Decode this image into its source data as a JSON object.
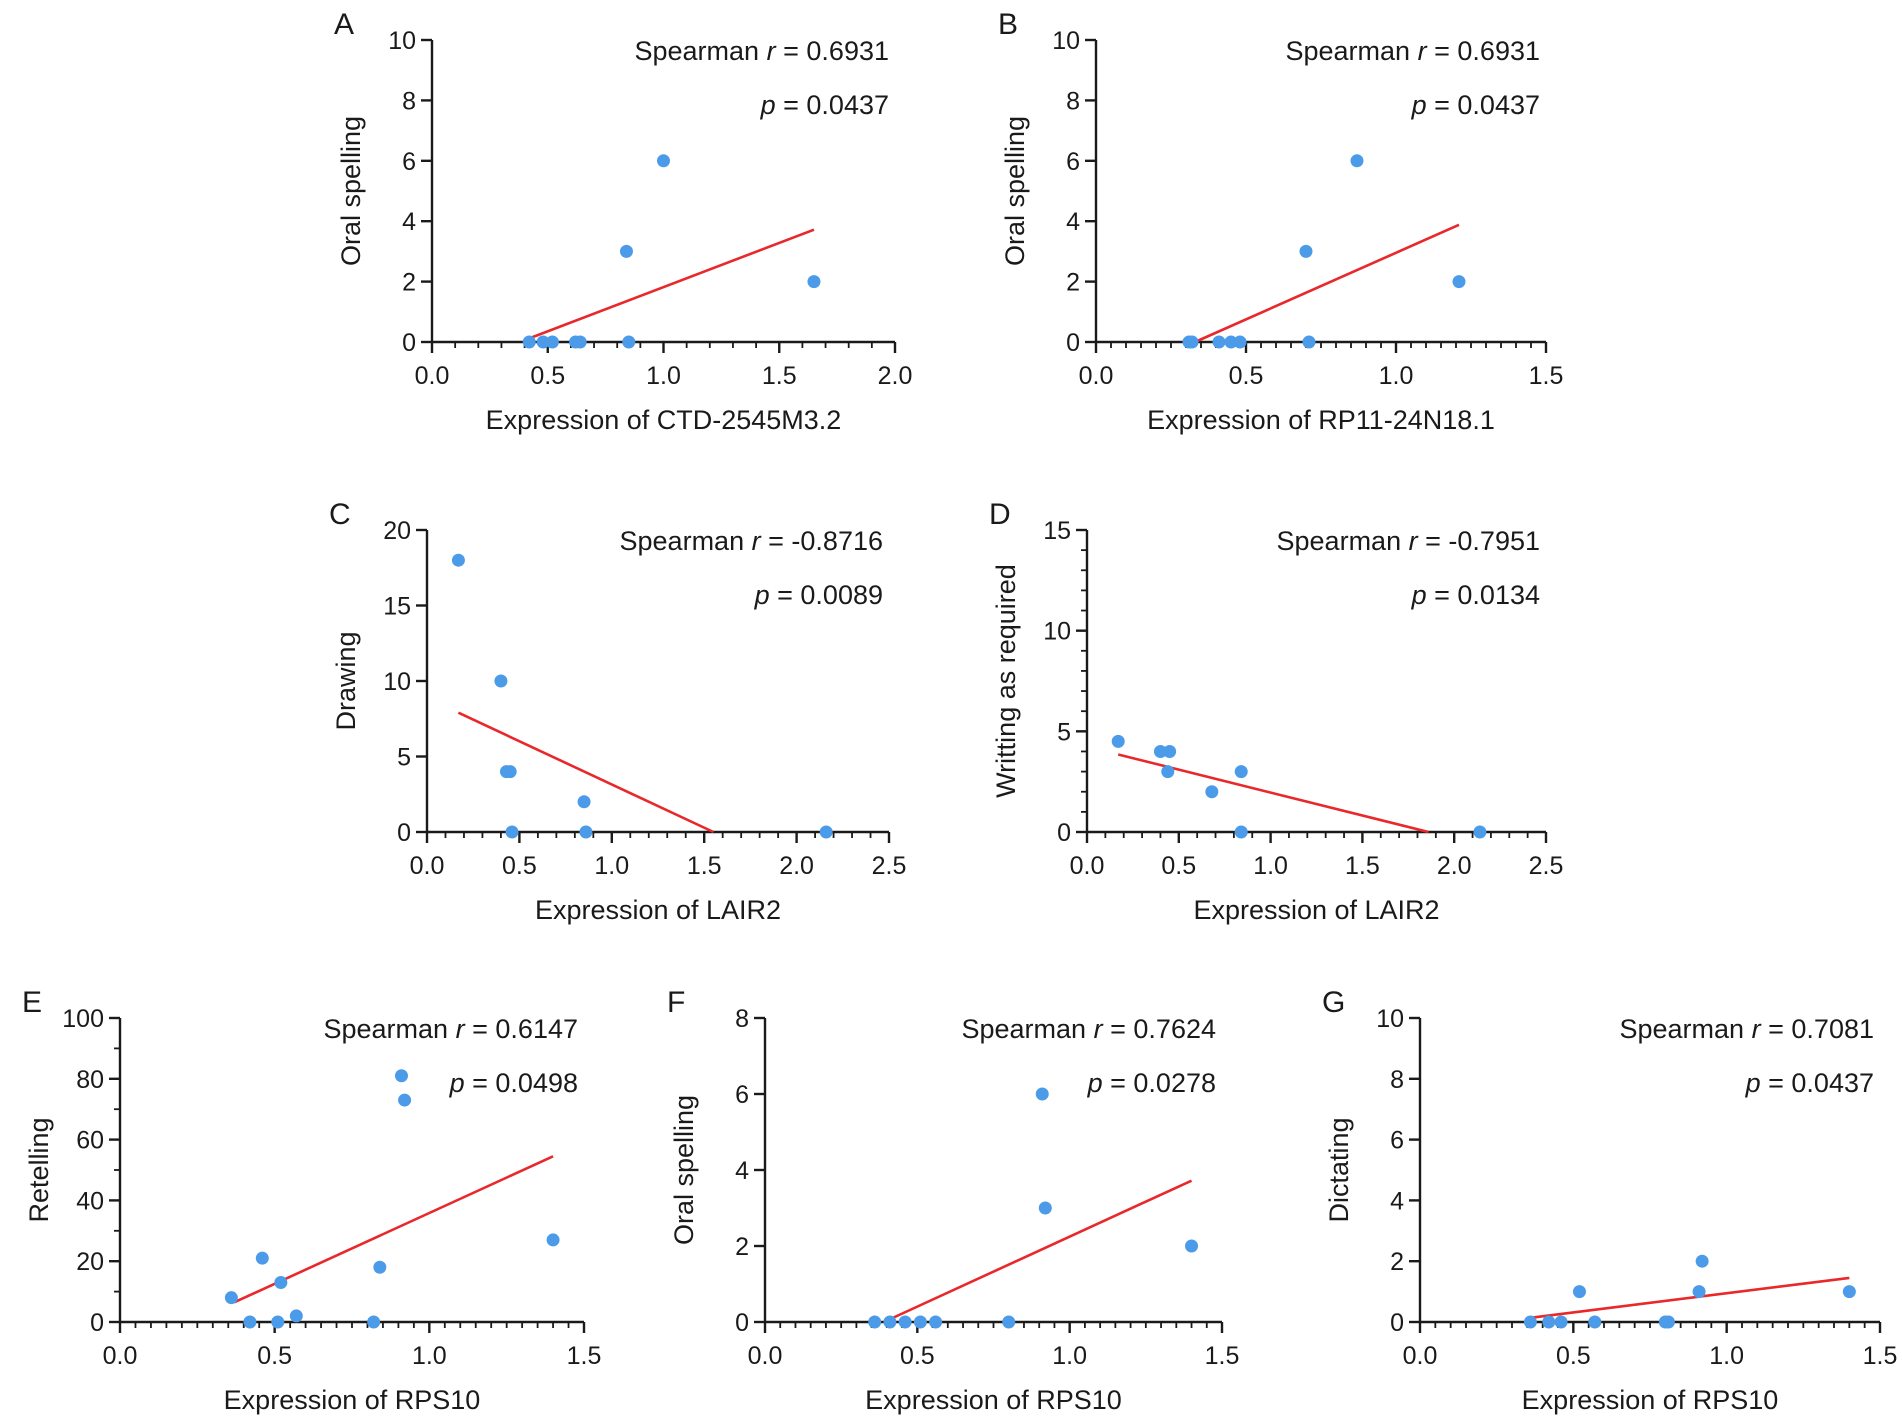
{
  "colors": {
    "point": "#4c9be8",
    "fit_line": "#e8282b",
    "axis": "#1a1a1a"
  },
  "chart_data": [
    {
      "id": "A",
      "panel_label": "A",
      "type": "scatter",
      "title": "",
      "xlabel": "Expression of CTD-2545M3.2",
      "ylabel": "Oral spelling",
      "xlim": [
        0,
        2.0
      ],
      "ylim": [
        0,
        10
      ],
      "x_ticks": [
        0,
        0.5,
        1.0,
        1.5,
        2.0
      ],
      "x_tick_labels": [
        "0.0",
        "0.5",
        "1.0",
        "1.5",
        "2.0"
      ],
      "y_ticks": [
        0,
        2,
        4,
        6,
        8,
        10
      ],
      "y_tick_labels": [
        "0",
        "2",
        "4",
        "6",
        "8",
        "10"
      ],
      "x_minor_step": 0.1,
      "y_minor_step": null,
      "stat_r_label": "Spearman",
      "stat_r_symbol": "r",
      "stat_r_value": "0.6931",
      "stat_p_symbol": "p",
      "stat_p_value": "0.0437",
      "stat_eq": "=",
      "points": [
        [
          0.42,
          0
        ],
        [
          0.48,
          0
        ],
        [
          0.52,
          0
        ],
        [
          0.62,
          0
        ],
        [
          0.64,
          0
        ],
        [
          0.84,
          3
        ],
        [
          0.85,
          0
        ],
        [
          1.0,
          6
        ],
        [
          1.65,
          2
        ]
      ],
      "fit_line": [
        [
          0.42,
          0.12
        ],
        [
          1.65,
          3.72
        ]
      ]
    },
    {
      "id": "B",
      "panel_label": "B",
      "type": "scatter",
      "title": "",
      "xlabel": "Expression of RP11-24N18.1",
      "ylabel": "Oral spelling",
      "xlim": [
        0,
        1.5
      ],
      "ylim": [
        0,
        10
      ],
      "x_ticks": [
        0,
        0.5,
        1.0,
        1.5
      ],
      "x_tick_labels": [
        "0.0",
        "0.5",
        "1.0",
        "1.5"
      ],
      "y_ticks": [
        0,
        2,
        4,
        6,
        8,
        10
      ],
      "y_tick_labels": [
        "0",
        "2",
        "4",
        "6",
        "8",
        "10"
      ],
      "x_minor_step": 0.05,
      "y_minor_step": null,
      "stat_r_label": "Spearman",
      "stat_r_symbol": "r",
      "stat_r_value": "0.6931",
      "stat_p_symbol": "p",
      "stat_p_value": "0.0437",
      "stat_eq": "=",
      "points": [
        [
          0.31,
          0
        ],
        [
          0.32,
          0
        ],
        [
          0.41,
          0
        ],
        [
          0.45,
          0
        ],
        [
          0.48,
          0
        ],
        [
          0.7,
          3
        ],
        [
          0.71,
          0
        ],
        [
          0.87,
          6
        ],
        [
          1.21,
          2
        ]
      ],
      "fit_line": [
        [
          0.33,
          0.0
        ],
        [
          1.21,
          3.88
        ]
      ]
    },
    {
      "id": "C",
      "panel_label": "C",
      "type": "scatter",
      "title": "",
      "xlabel": "Expression of LAIR2",
      "ylabel": "Drawing",
      "xlim": [
        0,
        2.5
      ],
      "ylim": [
        0,
        20
      ],
      "x_ticks": [
        0,
        0.5,
        1.0,
        1.5,
        2.0,
        2.5
      ],
      "x_tick_labels": [
        "0.0",
        "0.5",
        "1.0",
        "1.5",
        "2.0",
        "2.5"
      ],
      "y_ticks": [
        0,
        5,
        10,
        15,
        20
      ],
      "y_tick_labels": [
        "0",
        "5",
        "10",
        "15",
        "20"
      ],
      "x_minor_step": 0.1,
      "y_minor_step": null,
      "stat_r_label": "Spearman",
      "stat_r_symbol": "r",
      "stat_r_value": "-0.8716",
      "stat_p_symbol": "p",
      "stat_p_value": "0.0089",
      "stat_eq": "=",
      "points": [
        [
          0.17,
          18
        ],
        [
          0.4,
          10
        ],
        [
          0.43,
          4
        ],
        [
          0.45,
          4
        ],
        [
          0.46,
          0
        ],
        [
          0.85,
          2
        ],
        [
          0.86,
          0
        ],
        [
          2.16,
          0
        ]
      ],
      "fit_line": [
        [
          0.17,
          7.9
        ],
        [
          1.55,
          0.0
        ]
      ]
    },
    {
      "id": "D",
      "panel_label": "D",
      "type": "scatter",
      "title": "",
      "xlabel": "Expression of LAIR2",
      "ylabel": "Writting as required",
      "xlim": [
        0,
        2.5
      ],
      "ylim": [
        0,
        15
      ],
      "x_ticks": [
        0,
        0.5,
        1.0,
        1.5,
        2.0,
        2.5
      ],
      "x_tick_labels": [
        "0.0",
        "0.5",
        "1.0",
        "1.5",
        "2.0",
        "2.5"
      ],
      "y_ticks": [
        0,
        5,
        10,
        15
      ],
      "y_tick_labels": [
        "0",
        "5",
        "10",
        "15"
      ],
      "x_minor_step": 0.1,
      "y_minor_step": 1,
      "stat_r_label": "Spearman",
      "stat_r_symbol": "r",
      "stat_r_value": "-0.7951",
      "stat_p_symbol": "p",
      "stat_p_value": "0.0134",
      "stat_eq": "=",
      "points": [
        [
          0.17,
          4.5
        ],
        [
          0.4,
          4
        ],
        [
          0.44,
          3
        ],
        [
          0.45,
          4
        ],
        [
          0.68,
          2
        ],
        [
          0.84,
          3
        ],
        [
          0.84,
          0
        ],
        [
          2.14,
          0
        ]
      ],
      "fit_line": [
        [
          0.17,
          3.85
        ],
        [
          1.86,
          0.0
        ]
      ]
    },
    {
      "id": "E",
      "panel_label": "E",
      "type": "scatter",
      "title": "",
      "xlabel": "Expression of RPS10",
      "ylabel": "Retelling",
      "xlim": [
        0,
        1.5
      ],
      "ylim": [
        0,
        100
      ],
      "x_ticks": [
        0,
        0.5,
        1.0,
        1.5
      ],
      "x_tick_labels": [
        "0.0",
        "0.5",
        "1.0",
        "1.5"
      ],
      "y_ticks": [
        0,
        20,
        40,
        60,
        80,
        100
      ],
      "y_tick_labels": [
        "0",
        "20",
        "40",
        "60",
        "80",
        "100"
      ],
      "x_minor_step": 0.05,
      "y_minor_step": 10,
      "stat_r_label": "Spearman",
      "stat_r_symbol": "r",
      "stat_r_value": "0.6147",
      "stat_p_symbol": "p",
      "stat_p_value": "0.0498",
      "stat_eq": "=",
      "points": [
        [
          0.36,
          8
        ],
        [
          0.42,
          0
        ],
        [
          0.46,
          21
        ],
        [
          0.51,
          0
        ],
        [
          0.52,
          13
        ],
        [
          0.57,
          2
        ],
        [
          0.82,
          0
        ],
        [
          0.84,
          18
        ],
        [
          0.91,
          81
        ],
        [
          0.92,
          73
        ],
        [
          1.4,
          27
        ]
      ],
      "fit_line": [
        [
          0.37,
          6.5
        ],
        [
          1.4,
          54.5
        ]
      ]
    },
    {
      "id": "F",
      "panel_label": "F",
      "type": "scatter",
      "title": "",
      "xlabel": "Expression of RPS10",
      "ylabel": "Oral spelling",
      "xlim": [
        0,
        1.5
      ],
      "ylim": [
        0,
        8
      ],
      "x_ticks": [
        0,
        0.5,
        1.0,
        1.5
      ],
      "x_tick_labels": [
        "0.0",
        "0.5",
        "1.0",
        "1.5"
      ],
      "y_ticks": [
        0,
        2,
        4,
        6,
        8
      ],
      "y_tick_labels": [
        "0",
        "2",
        "4",
        "6",
        "8"
      ],
      "x_minor_step": 0.05,
      "y_minor_step": null,
      "stat_r_label": "Spearman",
      "stat_r_symbol": "r",
      "stat_r_value": "0.7624",
      "stat_p_symbol": "p",
      "stat_p_value": "0.0278",
      "stat_eq": "=",
      "points": [
        [
          0.36,
          0
        ],
        [
          0.41,
          0
        ],
        [
          0.46,
          0
        ],
        [
          0.51,
          0
        ],
        [
          0.56,
          0
        ],
        [
          0.8,
          0
        ],
        [
          0.91,
          6
        ],
        [
          0.92,
          3
        ],
        [
          1.4,
          2
        ]
      ],
      "fit_line": [
        [
          0.39,
          0.0
        ],
        [
          1.4,
          3.72
        ]
      ]
    },
    {
      "id": "G",
      "panel_label": "G",
      "type": "scatter",
      "title": "",
      "xlabel": "Expression of RPS10",
      "ylabel": "Dictating",
      "xlim": [
        0,
        1.5
      ],
      "ylim": [
        0,
        10
      ],
      "x_ticks": [
        0,
        0.5,
        1.0,
        1.5
      ],
      "x_tick_labels": [
        "0.0",
        "0.5",
        "1.0",
        "1.5"
      ],
      "y_ticks": [
        0,
        2,
        4,
        6,
        8,
        10
      ],
      "y_tick_labels": [
        "0",
        "2",
        "4",
        "6",
        "8",
        "10"
      ],
      "x_minor_step": 0.05,
      "y_minor_step": null,
      "stat_r_label": "Spearman",
      "stat_r_symbol": "r",
      "stat_r_value": "0.7081",
      "stat_p_symbol": "p",
      "stat_p_value": "0.0437",
      "stat_eq": "=",
      "points": [
        [
          0.36,
          0
        ],
        [
          0.42,
          0
        ],
        [
          0.46,
          0
        ],
        [
          0.52,
          1
        ],
        [
          0.57,
          0
        ],
        [
          0.8,
          0
        ],
        [
          0.81,
          0
        ],
        [
          0.91,
          1
        ],
        [
          0.92,
          2
        ],
        [
          1.4,
          1
        ]
      ],
      "fit_line": [
        [
          0.37,
          0.15
        ],
        [
          1.4,
          1.45
        ]
      ]
    }
  ]
}
